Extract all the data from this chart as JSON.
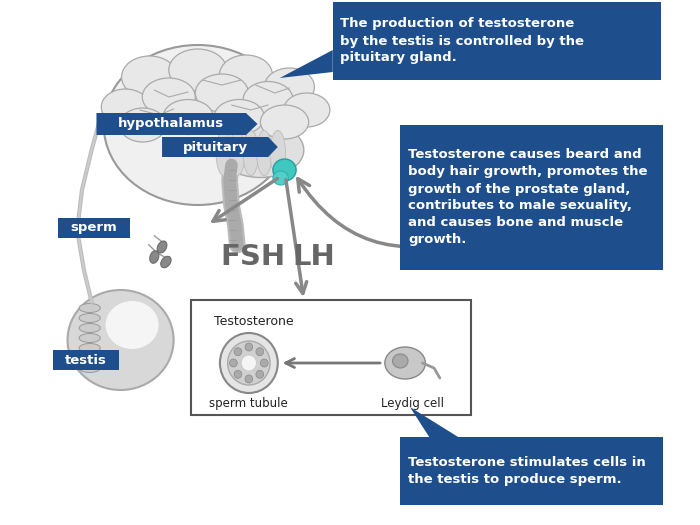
{
  "bg_color": "#ffffff",
  "blue_box_color": "#1e4f8c",
  "blue_box_text_color": "#ffffff",
  "cyan_label_color": "#1aa0b4",
  "gray_color": "#888888",
  "box1_text": "The production of testosterone\nby the testis is controlled by the\npituitary gland.",
  "box2_text": "Testosterone causes beard and\nbody hair growth, promotes the\ngrowth of the prostate gland,\ncontributes to male sexuality,\nand causes bone and muscle\ngrowth.",
  "box3_text": "Testosterone stimulates cells in\nthe testis to produce sperm.",
  "label_hypothalamus": "hypothalamus",
  "label_pituitary": "pituitary",
  "label_sperm": "sperm",
  "label_testis": "testis",
  "label_FSH": "FSH",
  "label_LH": "LH",
  "label_testosterone": "Testosterone",
  "label_sperm_tubule": "sperm tubule",
  "label_leydig": "Leydig cell",
  "figsize": [
    7.0,
    5.25
  ],
  "dpi": 100
}
